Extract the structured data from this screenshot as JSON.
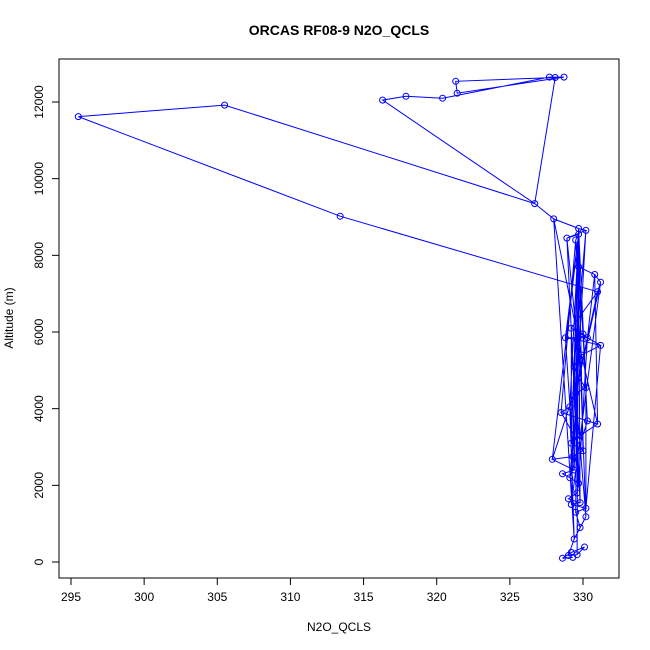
{
  "chart_data": {
    "type": "line",
    "title": "ORCAS RF08-9 N2O_QCLS",
    "xlabel": "N2O_QCLS",
    "ylabel": "Altitude (m)",
    "xlim": [
      295,
      330
    ],
    "ylim": [
      0,
      12000
    ],
    "x_ticks": [
      295,
      300,
      305,
      310,
      315,
      320,
      325,
      330
    ],
    "y_ticks": [
      0,
      2000,
      4000,
      6000,
      8000,
      10000,
      12000
    ],
    "color": "#0000ff",
    "marker": "open-circle",
    "grid": false,
    "legend": "none",
    "points": [
      [
        329.3,
        120
      ],
      [
        328.6,
        100
      ],
      [
        329.0,
        170
      ],
      [
        329.6,
        190
      ],
      [
        329.2,
        250
      ],
      [
        330.1,
        390
      ],
      [
        329.4,
        600
      ],
      [
        329.8,
        900
      ],
      [
        330.2,
        1180
      ],
      [
        329.5,
        1300
      ],
      [
        330.2,
        1400
      ],
      [
        329.2,
        1500
      ],
      [
        329.8,
        1550
      ],
      [
        329.0,
        1650
      ],
      [
        329.6,
        1800
      ],
      [
        329.7,
        2050
      ],
      [
        329.1,
        2200
      ],
      [
        328.6,
        2300
      ],
      [
        329.4,
        2400
      ],
      [
        327.9,
        2680
      ],
      [
        329.3,
        2750
      ],
      [
        330.0,
        2900
      ],
      [
        329.2,
        3100
      ],
      [
        329.8,
        3300
      ],
      [
        331.0,
        3600
      ],
      [
        330.3,
        3680
      ],
      [
        328.5,
        3900
      ],
      [
        329.1,
        4050
      ],
      [
        329.5,
        4400
      ],
      [
        330.2,
        4550
      ],
      [
        329.7,
        4800
      ],
      [
        329.4,
        5100
      ],
      [
        329.9,
        5400
      ],
      [
        331.2,
        5650
      ],
      [
        329.6,
        5800
      ],
      [
        328.8,
        5850
      ],
      [
        330.3,
        5850
      ],
      [
        330.0,
        5950
      ],
      [
        329.2,
        6100
      ],
      [
        331.0,
        7050
      ],
      [
        331.2,
        7300
      ],
      [
        330.8,
        7500
      ],
      [
        329.7,
        7700
      ],
      [
        329.5,
        8400
      ],
      [
        329.7,
        8550
      ],
      [
        328.9,
        8450
      ],
      [
        330.2,
        8650
      ],
      [
        329.7,
        8700
      ],
      [
        328.0,
        8950
      ],
      [
        326.7,
        9350
      ],
      [
        313.4,
        9020
      ],
      [
        295.5,
        11620
      ],
      [
        305.5,
        11920
      ],
      [
        316.3,
        12050
      ],
      [
        317.9,
        12150
      ],
      [
        320.4,
        12100
      ],
      [
        321.4,
        12230
      ],
      [
        321.3,
        12540
      ],
      [
        327.7,
        12650
      ],
      [
        328.1,
        12640
      ],
      [
        328.7,
        12650
      ]
    ],
    "path_order": [
      0,
      1,
      4,
      5,
      3,
      2,
      6,
      8,
      7,
      9,
      10,
      11,
      12,
      13,
      14,
      15,
      16,
      17,
      18,
      19,
      20,
      21,
      22,
      23,
      24,
      25,
      26,
      27,
      28,
      29,
      30,
      31,
      32,
      33,
      34,
      35,
      36,
      37,
      38,
      39,
      40,
      41,
      42,
      43,
      44,
      45,
      46,
      47,
      48,
      49,
      59,
      57,
      56,
      60,
      58,
      55,
      54,
      53,
      49,
      52,
      51,
      50,
      39,
      30,
      20,
      46,
      31,
      12,
      42,
      28,
      8,
      43,
      26,
      21,
      47,
      29,
      10,
      33,
      38,
      22,
      44,
      27,
      6,
      48,
      32,
      24,
      41,
      36,
      15,
      45,
      34,
      9,
      42,
      37,
      25,
      16,
      30,
      19,
      44,
      35,
      18,
      28,
      40,
      11,
      47,
      3
    ]
  }
}
